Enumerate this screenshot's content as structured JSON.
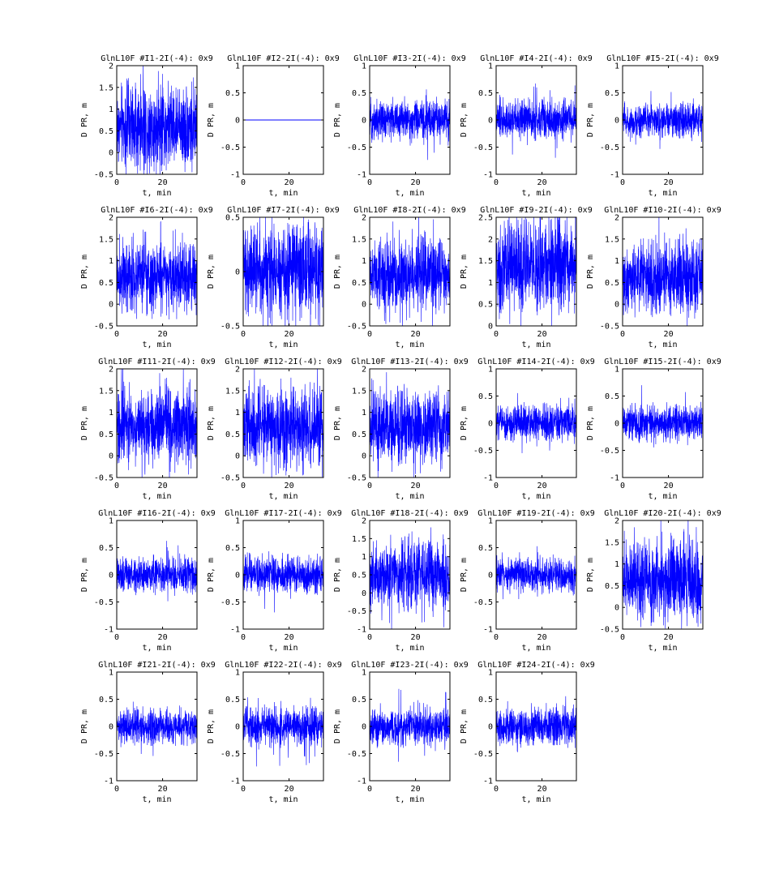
{
  "style": {
    "line_color": "#0000ff",
    "axis_color": "#000000",
    "background": "#ffffff"
  },
  "chart_data": [
    {
      "type": "line",
      "title": "GlnL10F #I1-2I(-4): 0x9",
      "xlabel": "t, min",
      "ylabel": "D PR, m",
      "xlim": [
        0,
        35
      ],
      "ylim": [
        -0.5,
        2
      ],
      "yticks": [
        -0.5,
        0,
        0.5,
        1,
        1.5,
        2
      ],
      "xticks": [
        0,
        20
      ],
      "signal": {
        "mean": 0.6,
        "spread": 0.45,
        "spikes": 1.0
      }
    },
    {
      "type": "line",
      "title": "GlnL10F #I2-2I(-4): 0x9",
      "xlabel": "t, min",
      "ylabel": "D PR, m",
      "xlim": [
        0,
        35
      ],
      "ylim": [
        -1,
        1
      ],
      "yticks": [
        -1,
        -0.5,
        0,
        0.5,
        1
      ],
      "xticks": [
        0,
        20
      ],
      "signal": {
        "mean": 0,
        "spread": 0,
        "spikes": 0
      }
    },
    {
      "type": "line",
      "title": "GlnL10F #I3-2I(-4): 0x9",
      "xlabel": "t, min",
      "ylabel": "D PR, m",
      "xlim": [
        0,
        35
      ],
      "ylim": [
        -1,
        1
      ],
      "yticks": [
        -1,
        -0.5,
        0,
        0.5,
        1
      ],
      "xticks": [
        0,
        20
      ],
      "signal": {
        "mean": 0,
        "spread": 0.17,
        "spikes": 0.45
      }
    },
    {
      "type": "line",
      "title": "GlnL10F #I4-2I(-4): 0x9",
      "xlabel": "t, min",
      "ylabel": "D PR, m",
      "xlim": [
        0,
        35
      ],
      "ylim": [
        -1,
        1
      ],
      "yticks": [
        -1,
        -0.5,
        0,
        0.5,
        1
      ],
      "xticks": [
        0,
        20
      ],
      "signal": {
        "mean": 0,
        "spread": 0.17,
        "spikes": 0.45
      }
    },
    {
      "type": "line",
      "title": "GlnL10F #I5-2I(-4): 0x9",
      "xlabel": "t, min",
      "ylabel": "D PR, m",
      "xlim": [
        0,
        35
      ],
      "ylim": [
        -1,
        1
      ],
      "yticks": [
        -1,
        -0.5,
        0,
        0.5,
        1
      ],
      "xticks": [
        0,
        20
      ],
      "signal": {
        "mean": 0,
        "spread": 0.15,
        "spikes": 0.45
      }
    },
    {
      "type": "line",
      "title": "GlnL10F #I6-2I(-4): 0x9",
      "xlabel": "t, min",
      "ylabel": "D PR, m",
      "xlim": [
        0,
        35
      ],
      "ylim": [
        -0.5,
        2
      ],
      "yticks": [
        -0.5,
        0,
        0.5,
        1,
        1.5,
        2
      ],
      "xticks": [
        0,
        20
      ],
      "signal": {
        "mean": 0.65,
        "spread": 0.4,
        "spikes": 1.0
      }
    },
    {
      "type": "line",
      "title": "GlnL10F #I7-2I(-4): 0x9",
      "xlabel": "t, min",
      "ylabel": "D PR, m",
      "xlim": [
        0,
        35
      ],
      "ylim": [
        -0.5,
        0.5
      ],
      "yticks": [
        -0.5,
        0,
        0.5
      ],
      "xticks": [
        0,
        20
      ],
      "signal": {
        "mean": 0,
        "spread": 0.2,
        "spikes": 0.45
      }
    },
    {
      "type": "line",
      "title": "GlnL10F #I8-2I(-4): 0x9",
      "xlabel": "t, min",
      "ylabel": "D PR, m",
      "xlim": [
        0,
        35
      ],
      "ylim": [
        -0.5,
        2
      ],
      "yticks": [
        -0.5,
        0,
        0.5,
        1,
        1.5,
        2
      ],
      "xticks": [
        0,
        20
      ],
      "signal": {
        "mean": 0.65,
        "spread": 0.4,
        "spikes": 1.0
      }
    },
    {
      "type": "line",
      "title": "GlnL10F #I9-2I(-4): 0x9",
      "xlabel": "t, min",
      "ylabel": "D PR, m",
      "xlim": [
        0,
        35
      ],
      "ylim": [
        0,
        2.5
      ],
      "yticks": [
        0,
        0.5,
        1,
        1.5,
        2,
        2.5
      ],
      "xticks": [
        0,
        20
      ],
      "signal": {
        "mean": 1.4,
        "spread": 0.5,
        "spikes": 1.1
      }
    },
    {
      "type": "line",
      "title": "GlnL10F #I10-2I(-4): 0x9",
      "xlabel": "t, min",
      "ylabel": "D PR, m",
      "xlim": [
        0,
        35
      ],
      "ylim": [
        -0.5,
        2
      ],
      "yticks": [
        -0.5,
        0,
        0.5,
        1,
        1.5,
        2
      ],
      "xticks": [
        0,
        20
      ],
      "signal": {
        "mean": 0.65,
        "spread": 0.4,
        "spikes": 1.0
      }
    },
    {
      "type": "line",
      "title": "GlnL10F #I11-2I(-4): 0x9",
      "xlabel": "t, min",
      "ylabel": "D PR, m",
      "xlim": [
        0,
        35
      ],
      "ylim": [
        -0.5,
        2
      ],
      "yticks": [
        -0.5,
        0,
        0.5,
        1,
        1.5,
        2
      ],
      "xticks": [
        0,
        20
      ],
      "signal": {
        "mean": 0.7,
        "spread": 0.4,
        "spikes": 1.0
      }
    },
    {
      "type": "line",
      "title": "GlnL10F #I12-2I(-4): 0x9",
      "xlabel": "t, min",
      "ylabel": "D PR, m",
      "xlim": [
        0,
        35
      ],
      "ylim": [
        -0.5,
        2
      ],
      "yticks": [
        -0.5,
        0,
        0.5,
        1,
        1.5,
        2
      ],
      "xticks": [
        0,
        20
      ],
      "signal": {
        "mean": 0.65,
        "spread": 0.45,
        "spikes": 1.05
      }
    },
    {
      "type": "line",
      "title": "GlnL10F #I13-2I(-4): 0x9",
      "xlabel": "t, min",
      "ylabel": "D PR, m",
      "xlim": [
        0,
        35
      ],
      "ylim": [
        -0.5,
        2
      ],
      "yticks": [
        -0.5,
        0,
        0.5,
        1,
        1.5,
        2
      ],
      "xticks": [
        0,
        20
      ],
      "signal": {
        "mean": 0.65,
        "spread": 0.4,
        "spikes": 1.0
      }
    },
    {
      "type": "line",
      "title": "GlnL10F #I14-2I(-4): 0x9",
      "xlabel": "t, min",
      "ylabel": "D PR, m",
      "xlim": [
        0,
        35
      ],
      "ylim": [
        -1,
        1
      ],
      "yticks": [
        -1,
        -0.5,
        0,
        0.5,
        1
      ],
      "xticks": [
        0,
        20
      ],
      "signal": {
        "mean": 0,
        "spread": 0.15,
        "spikes": 0.45
      }
    },
    {
      "type": "line",
      "title": "GlnL10F #I15-2I(-4): 0x9",
      "xlabel": "t, min",
      "ylabel": "D PR, m",
      "xlim": [
        0,
        35
      ],
      "ylim": [
        -1,
        1
      ],
      "yticks": [
        -1,
        -0.5,
        0,
        0.5,
        1
      ],
      "xticks": [
        0,
        20
      ],
      "signal": {
        "mean": 0,
        "spread": 0.15,
        "spikes": 0.4
      }
    },
    {
      "type": "line",
      "title": "GlnL10F #I16-2I(-4): 0x9",
      "xlabel": "t, min",
      "ylabel": "D PR, m",
      "xlim": [
        0,
        35
      ],
      "ylim": [
        -1,
        1
      ],
      "yticks": [
        -1,
        -0.5,
        0,
        0.5,
        1
      ],
      "xticks": [
        0,
        20
      ],
      "signal": {
        "mean": 0,
        "spread": 0.15,
        "spikes": 0.45
      }
    },
    {
      "type": "line",
      "title": "GlnL10F #I17-2I(-4): 0x9",
      "xlabel": "t, min",
      "ylabel": "D PR, m",
      "xlim": [
        0,
        35
      ],
      "ylim": [
        -1,
        1
      ],
      "yticks": [
        -1,
        -0.5,
        0,
        0.5,
        1
      ],
      "xticks": [
        0,
        20
      ],
      "signal": {
        "mean": 0,
        "spread": 0.16,
        "spikes": 0.45
      }
    },
    {
      "type": "line",
      "title": "GlnL10F #I18-2I(-4): 0x9",
      "xlabel": "t, min",
      "ylabel": "D PR, m",
      "xlim": [
        0,
        35
      ],
      "ylim": [
        -1,
        2
      ],
      "yticks": [
        -1,
        -0.5,
        0,
        0.5,
        1,
        1.5,
        2
      ],
      "xticks": [
        0,
        20
      ],
      "signal": {
        "mean": 0.5,
        "spread": 0.45,
        "spikes": 1.1
      }
    },
    {
      "type": "line",
      "title": "GlnL10F #I19-2I(-4): 0x9",
      "xlabel": "t, min",
      "ylabel": "D PR, m",
      "xlim": [
        0,
        35
      ],
      "ylim": [
        -1,
        1
      ],
      "yticks": [
        -1,
        -0.5,
        0,
        0.5,
        1
      ],
      "xticks": [
        0,
        20
      ],
      "signal": {
        "mean": 0,
        "spread": 0.15,
        "spikes": 0.45
      }
    },
    {
      "type": "line",
      "title": "GlnL10F #I20-2I(-4): 0x9",
      "xlabel": "t, min",
      "ylabel": "D PR, m",
      "xlim": [
        0,
        35
      ],
      "ylim": [
        -0.5,
        2
      ],
      "yticks": [
        -0.5,
        0,
        0.5,
        1,
        1.5,
        2
      ],
      "xticks": [
        0,
        20
      ],
      "signal": {
        "mean": 0.65,
        "spread": 0.45,
        "spikes": 1.05
      }
    },
    {
      "type": "line",
      "title": "GlnL10F #I21-2I(-4): 0x9",
      "xlabel": "t, min",
      "ylabel": "D PR, m",
      "xlim": [
        0,
        35
      ],
      "ylim": [
        -1,
        1
      ],
      "yticks": [
        -1,
        -0.5,
        0,
        0.5,
        1
      ],
      "xticks": [
        0,
        20
      ],
      "signal": {
        "mean": 0,
        "spread": 0.15,
        "spikes": 0.45
      }
    },
    {
      "type": "line",
      "title": "GlnL10F #I22-2I(-4): 0x9",
      "xlabel": "t, min",
      "ylabel": "D PR, m",
      "xlim": [
        0,
        35
      ],
      "ylim": [
        -1,
        1
      ],
      "yticks": [
        -1,
        -0.5,
        0,
        0.5,
        1
      ],
      "xticks": [
        0,
        20
      ],
      "signal": {
        "mean": 0,
        "spread": 0.17,
        "spikes": 0.55
      }
    },
    {
      "type": "line",
      "title": "GlnL10F #I23-2I(-4): 0x9",
      "xlabel": "t, min",
      "ylabel": "D PR, m",
      "xlim": [
        0,
        35
      ],
      "ylim": [
        -1,
        1
      ],
      "yticks": [
        -1,
        -0.5,
        0,
        0.5,
        1
      ],
      "xticks": [
        0,
        20
      ],
      "signal": {
        "mean": 0,
        "spread": 0.15,
        "spikes": 0.5
      }
    },
    {
      "type": "line",
      "title": "GlnL10F #I24-2I(-4): 0x9",
      "xlabel": "t, min",
      "ylabel": "D PR, m",
      "xlim": [
        0,
        35
      ],
      "ylim": [
        -1,
        1
      ],
      "yticks": [
        -1,
        -0.5,
        0,
        0.5,
        1
      ],
      "xticks": [
        0,
        20
      ],
      "signal": {
        "mean": 0,
        "spread": 0.16,
        "spikes": 0.45
      }
    }
  ]
}
